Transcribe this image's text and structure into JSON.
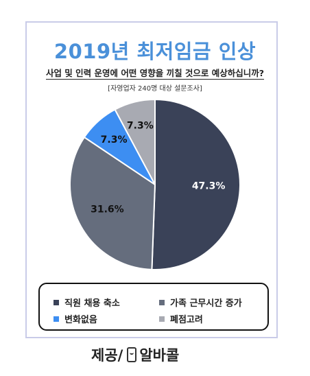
{
  "header": {
    "title": "2019년 최저임금 인상",
    "question": "사업 및 인력 운영에 어떤 영향을 끼칠 것으로 예상하십니까?",
    "note": "[자영업자 240명 대상 설문조사]"
  },
  "chart_data": {
    "type": "pie",
    "slices": [
      {
        "label": "직원 채용 축소",
        "value": 47.3,
        "display": "47.3%",
        "color": "#3a4258",
        "label_color": "#ffffff"
      },
      {
        "label": "가족 근무시간 증가",
        "value": 31.6,
        "display": "31.6%",
        "color": "#656d7d",
        "label_color": "#111111"
      },
      {
        "label": "변화없음",
        "value": 7.3,
        "display": "7.3%",
        "color": "#3d8ef2",
        "label_color": "#111111"
      },
      {
        "label": "폐점고려",
        "value": 7.3,
        "display": "7.3%",
        "color": "#a8aab2",
        "label_color": "#111111"
      }
    ],
    "start_angle_deg": 0,
    "direction": "clockwise",
    "legend_position": "bottom"
  },
  "legend": {
    "items": [
      {
        "label": "직원 채용 축소",
        "color": "#3a4258"
      },
      {
        "label": "가족 근무시간 증가",
        "color": "#656d7d"
      },
      {
        "label": "변화없음",
        "color": "#3d8ef2"
      },
      {
        "label": "폐점고려",
        "color": "#a8aab2"
      }
    ]
  },
  "footer": {
    "provider_prefix": "제공/",
    "brand": "알바콜",
    "brand_icon": "phone-icon"
  }
}
